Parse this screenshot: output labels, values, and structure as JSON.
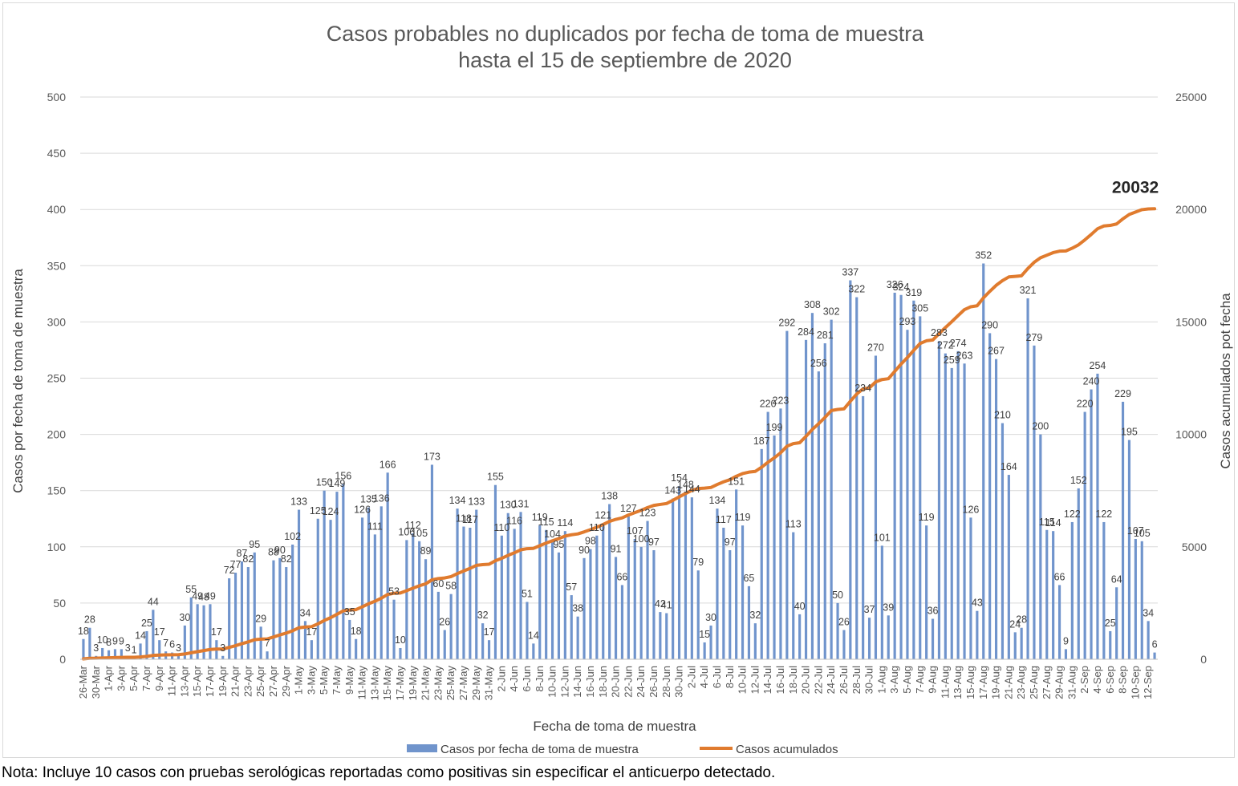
{
  "chart_data": {
    "type": "bar",
    "title_lines": [
      "Casos probables no duplicados por fecha de toma de muestra",
      "hasta el  15 de septiembre de 2020"
    ],
    "xlabel": "Fecha de toma de muestra",
    "ylabel": "Casos por fecha de toma de muestra",
    "y2label": "Casos acumulados pot fecha",
    "ylim": [
      0,
      500
    ],
    "y2lim": [
      0,
      25000
    ],
    "yticks": [
      0,
      50,
      100,
      150,
      200,
      250,
      300,
      350,
      400,
      450,
      500
    ],
    "y2ticks": [
      0,
      5000,
      10000,
      15000,
      20000,
      25000
    ],
    "grid": true,
    "legend_position": "bottom",
    "start_date": "2020-03-26",
    "date_labels": [
      "26-Mar",
      "30-Mar",
      "1-Apr",
      "3-Apr",
      "5-Apr",
      "7-Apr",
      "9-Apr",
      "11-Apr",
      "13-Apr",
      "15-Apr",
      "17-Apr",
      "19-Apr",
      "21-Apr",
      "23-Apr",
      "25-Apr",
      "27-Apr",
      "29-Apr",
      "1-May",
      "3-May",
      "5-May",
      "7-May",
      "9-May",
      "11-May",
      "13-May",
      "15-May",
      "17-May",
      "19-May",
      "21-May",
      "23-May",
      "25-May",
      "27-May",
      "29-May",
      "31-May",
      "2-Jun",
      "4-Jun",
      "6-Jun",
      "8-Jun",
      "10-Jun",
      "12-Jun",
      "14-Jun",
      "16-Jun",
      "18-Jun",
      "20-Jun",
      "22-Jun",
      "24-Jun",
      "26-Jun",
      "28-Jun",
      "30-Jun",
      "2-Jul",
      "4-Jul",
      "6-Jul",
      "8-Jul",
      "10-Jul",
      "12-Jul",
      "14-Jul",
      "16-Jul",
      "18-Jul",
      "20-Jul",
      "22-Jul",
      "24-Jul",
      "26-Jul",
      "28-Jul",
      "30-Jul",
      "1-Aug",
      "3-Aug",
      "5-Aug",
      "7-Aug",
      "9-Aug",
      "11-Aug",
      "13-Aug",
      "15-Aug",
      "17-Aug",
      "19-Aug",
      "21-Aug",
      "23-Aug",
      "25-Aug",
      "27-Aug",
      "29-Aug",
      "31-Aug",
      "2-Sep",
      "4-Sep",
      "6-Sep",
      "8-Sep",
      "10-Sep",
      "12-Sep"
    ],
    "series": [
      {
        "name": "Casos por fecha de toma de muestra",
        "type": "bar",
        "color": "#7094cc",
        "values": [
          18,
          28,
          3,
          10,
          8,
          9,
          9,
          3,
          1,
          14,
          25,
          44,
          17,
          7,
          6,
          3,
          30,
          55,
          49,
          48,
          49,
          17,
          3,
          72,
          77,
          87,
          82,
          95,
          29,
          7,
          88,
          90,
          82,
          102,
          133,
          34,
          17,
          125,
          150,
          124,
          149,
          156,
          35,
          18,
          126,
          135,
          111,
          136,
          166,
          53,
          10,
          106,
          112,
          105,
          89,
          173,
          60,
          26,
          58,
          134,
          118,
          117,
          133,
          32,
          17,
          155,
          110,
          130,
          116,
          131,
          51,
          14,
          119,
          115,
          104,
          95,
          114,
          57,
          38,
          90,
          98,
          110,
          121,
          138,
          91,
          66,
          127,
          107,
          100,
          123,
          97,
          42,
          41,
          143,
          154,
          148,
          144,
          79,
          15,
          30,
          134,
          117,
          97,
          151,
          119,
          65,
          32,
          187,
          220,
          199,
          223,
          292,
          113,
          40,
          284,
          308,
          256,
          281,
          302,
          50,
          26,
          337,
          322,
          234,
          37,
          270,
          101,
          39,
          326,
          324,
          293,
          319,
          305,
          119,
          36,
          283,
          272,
          259,
          274,
          263,
          126,
          43,
          352,
          290,
          267,
          210,
          164,
          24,
          28,
          321,
          279,
          200,
          115,
          114,
          66,
          9,
          122,
          152,
          220,
          240,
          254,
          122,
          25,
          64,
          229,
          195,
          107,
          105,
          34,
          6
        ]
      },
      {
        "name": "Casos acumulados",
        "type": "line",
        "color": "#e07b2e",
        "final_value_label": "20032"
      }
    ]
  },
  "note": "Nota: Incluye 10 casos con pruebas serológicas reportadas como positivas sin especificar el anticuerpo detectado."
}
